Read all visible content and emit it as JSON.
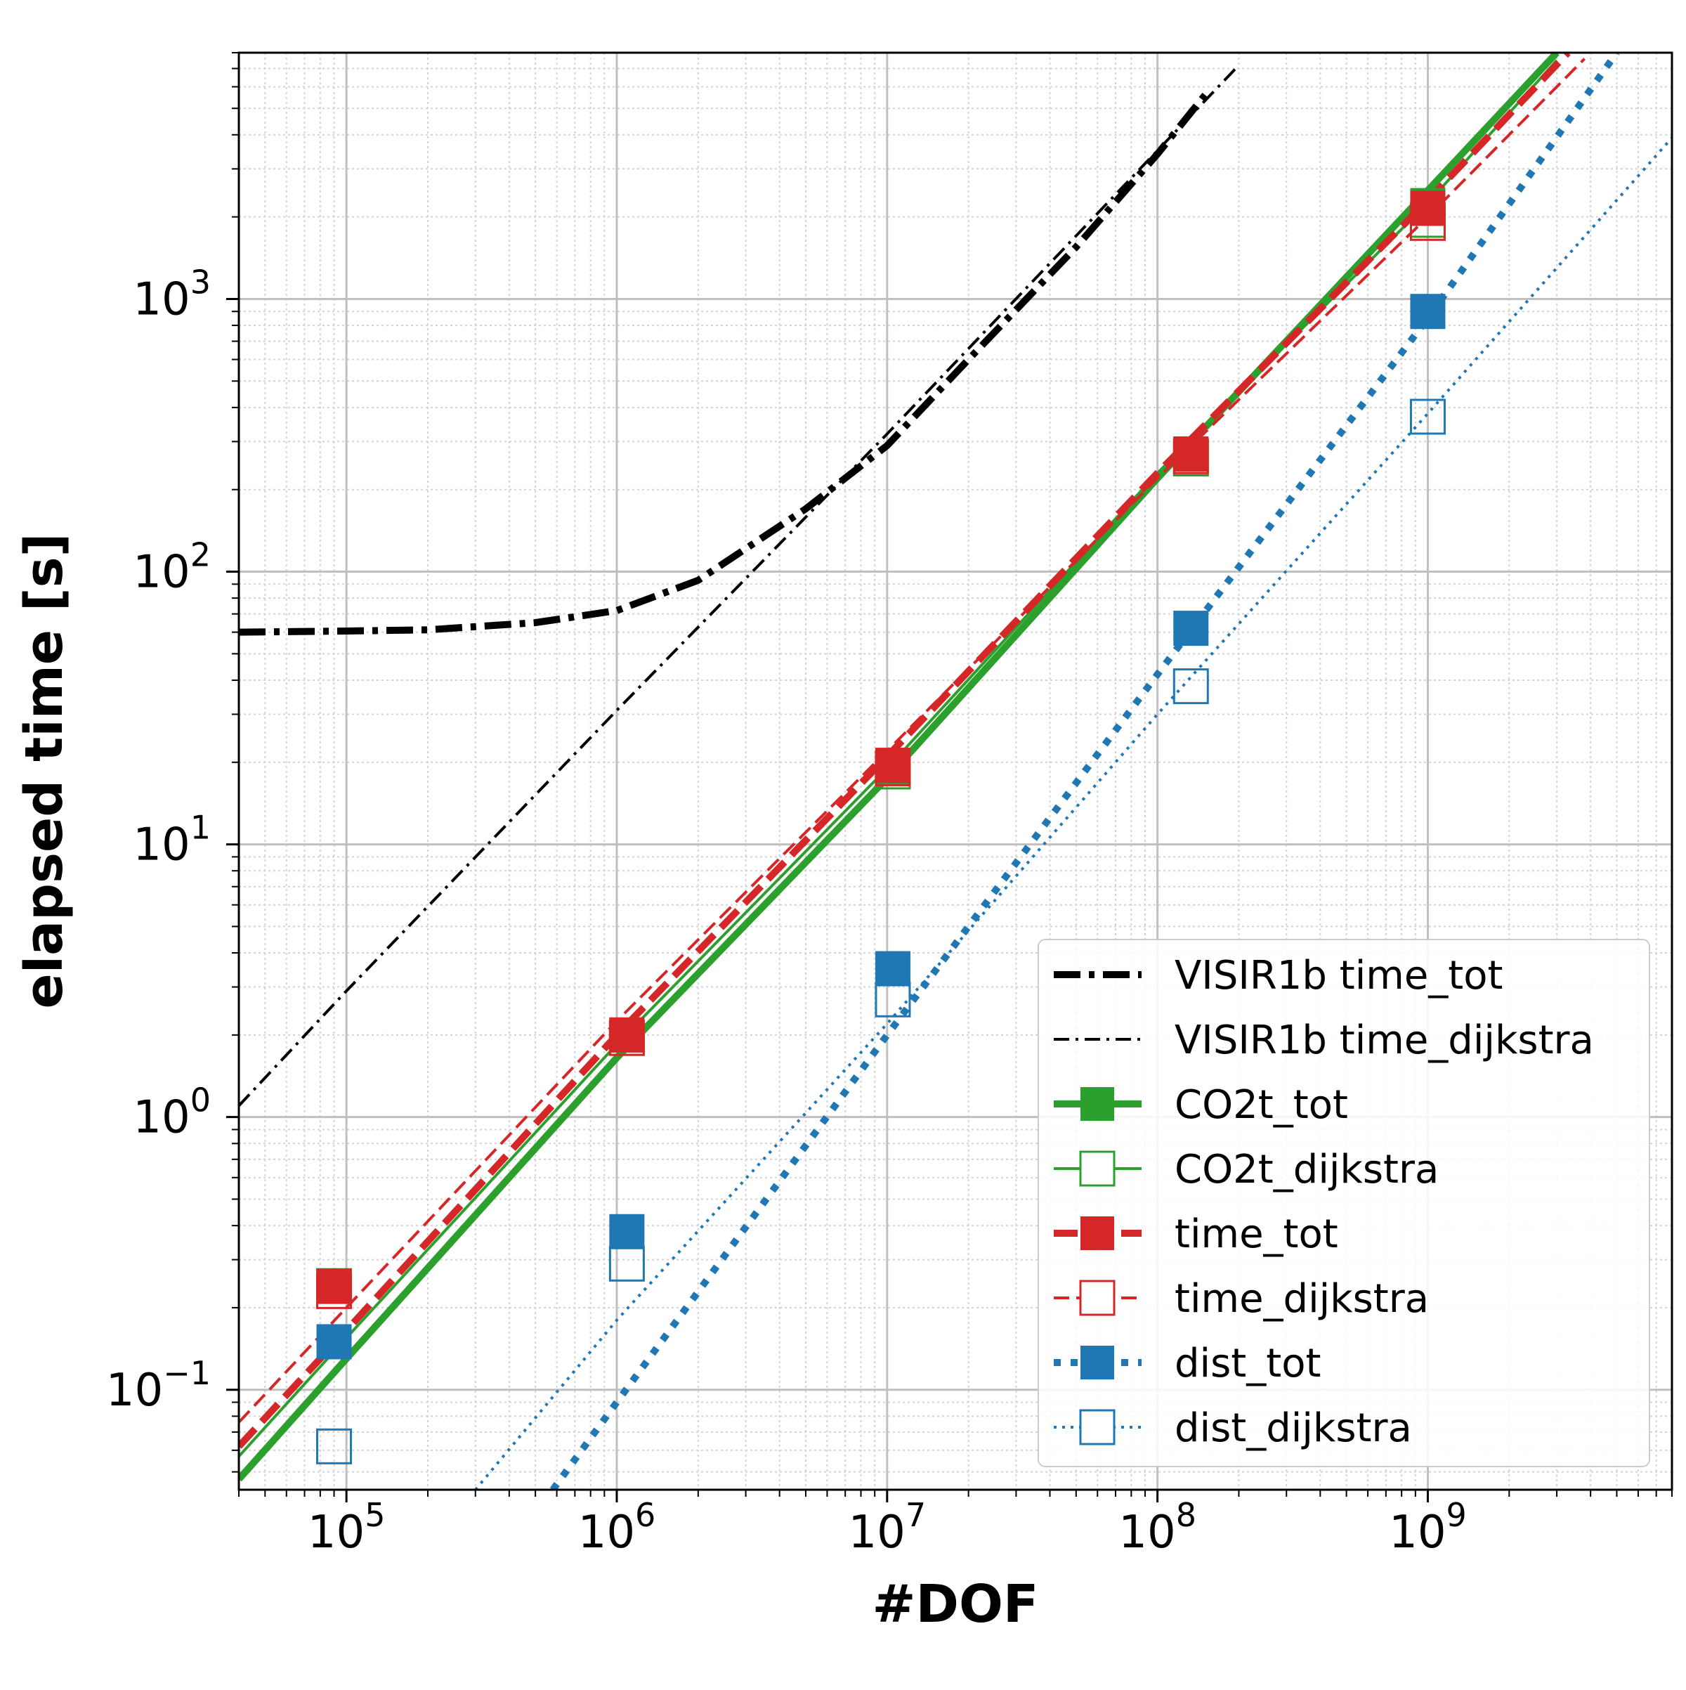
{
  "chart_data": {
    "type": "line",
    "title": "",
    "xlabel": "#DOF",
    "ylabel": "elapsed time [s]",
    "x_scale": "log",
    "y_scale": "log",
    "xlim": [
      40000,
      8000000000
    ],
    "ylim": [
      0.043,
      8000
    ],
    "grid": "major and minor",
    "legend_position": "lower right",
    "x_tick_labels": [
      {
        "value": 100000,
        "base": "10",
        "exp": "5"
      },
      {
        "value": 1000000,
        "base": "10",
        "exp": "6"
      },
      {
        "value": 10000000,
        "base": "10",
        "exp": "7"
      },
      {
        "value": 100000000,
        "base": "10",
        "exp": "8"
      },
      {
        "value": 1000000000,
        "base": "10",
        "exp": "9"
      }
    ],
    "y_tick_labels": [
      {
        "value": 0.1,
        "base": "10",
        "exp": "−1"
      },
      {
        "value": 1,
        "base": "10",
        "exp": "0"
      },
      {
        "value": 10,
        "base": "10",
        "exp": "1"
      },
      {
        "value": 100,
        "base": "10",
        "exp": "2"
      },
      {
        "value": 1000,
        "base": "10",
        "exp": "3"
      }
    ],
    "series": [
      {
        "name": "VISIR1b time_tot",
        "color": "#000000",
        "line_style": "dashdot-thick",
        "marker": "none",
        "x": [
          40000,
          100000,
          200000,
          500000,
          1000000,
          2000000,
          5000000,
          10000000,
          20000000,
          50000000,
          100000000,
          150000000
        ],
        "y": [
          60,
          60.6,
          61.2,
          65,
          72,
          93,
          170,
          290,
          600,
          1550,
          3400,
          5600
        ]
      },
      {
        "name": "VISIR1b time_dijkstra",
        "color": "#000000",
        "line_style": "dashdot-thin",
        "marker": "none",
        "x": [
          40000,
          100000,
          1000000,
          10000000,
          100000000,
          200000000
        ],
        "y": [
          1.1,
          2.9,
          31,
          320,
          3500,
          7200
        ]
      },
      {
        "name": "CO2t_tot",
        "color": "#2ca02c",
        "line_style": "solid-thick",
        "marker": "filled-square",
        "x": [
          40000,
          100000,
          1000000,
          10000000,
          100000000,
          1000000000,
          3000000000
        ],
        "y": [
          0.047,
          0.13,
          1.65,
          17.5,
          220,
          2500,
          8000
        ],
        "points_x": [
          90000,
          1090000,
          10500000,
          133000000,
          1000000000
        ],
        "points_y": [
          0.24,
          2.0,
          19,
          270,
          2200
        ]
      },
      {
        "name": "CO2t_dijkstra",
        "color": "#2ca02c",
        "line_style": "solid-thin",
        "marker": "open-square",
        "x": [
          40000,
          100000,
          1000000,
          10000000,
          100000000,
          1000000000,
          3000000000
        ],
        "y": [
          0.057,
          0.155,
          1.85,
          19,
          230,
          2250,
          7500
        ],
        "points_x": [
          90000,
          1090000,
          10500000,
          133000000,
          1000000000
        ],
        "points_y": [
          0.24,
          1.95,
          18.5,
          260,
          1950
        ]
      },
      {
        "name": "time_tot",
        "color": "#d62728",
        "line_style": "dashed-thick",
        "marker": "filled-square",
        "x": [
          40000,
          100000,
          1000000,
          10000000,
          100000000,
          1000000000,
          3300000000
        ],
        "y": [
          0.062,
          0.165,
          2.0,
          21,
          230,
          2300,
          8000
        ],
        "points_x": [
          90000,
          1090000,
          10500000,
          133000000,
          1000000000
        ],
        "points_y": [
          0.24,
          2.0,
          19.5,
          270,
          2150
        ]
      },
      {
        "name": "time_dijkstra",
        "color": "#d62728",
        "line_style": "dashed-thin",
        "marker": "open-square",
        "x": [
          40000,
          100000,
          1000000,
          10000000,
          100000000,
          1000000000,
          3800000000
        ],
        "y": [
          0.076,
          0.2,
          2.25,
          22,
          220,
          2000,
          7600
        ],
        "points_x": [
          90000,
          1090000,
          10500000,
          133000000,
          1000000000
        ],
        "points_y": [
          0.23,
          1.95,
          19,
          265,
          1900
        ]
      },
      {
        "name": "dist_tot",
        "color": "#1f77b4",
        "line_style": "dotted-thick",
        "marker": "filled-square",
        "x": [
          580000,
          1000000,
          10000000,
          100000000,
          1000000000,
          5000000000
        ],
        "y": [
          0.043,
          0.09,
          2.0,
          42,
          850,
          8000
        ],
        "points_x": [
          90000,
          1090000,
          10500000,
          133000000,
          1000000000
        ],
        "points_y": [
          0.15,
          0.38,
          3.5,
          62,
          900
        ]
      },
      {
        "name": "dist_dijkstra",
        "color": "#1f77b4",
        "line_style": "dotted-thin",
        "marker": "open-square",
        "x": [
          300000,
          1000000,
          10000000,
          100000000,
          1000000000,
          8000000000
        ],
        "y": [
          0.043,
          0.18,
          2.2,
          30,
          380,
          3900
        ],
        "points_x": [
          90000,
          1090000,
          10500000,
          133000000,
          1000000000
        ],
        "points_y": [
          0.062,
          0.29,
          2.7,
          38,
          370
        ]
      }
    ]
  }
}
